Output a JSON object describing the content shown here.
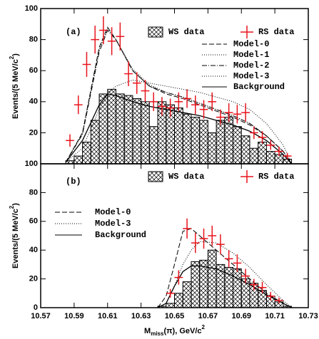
{
  "chart_data": [
    {
      "type": "histogram",
      "panel_label": "(a)",
      "ylabel": {
        "main": "Events/(5 MeV/c",
        "sup": "2",
        "end": ")"
      },
      "xlim": [
        10.57,
        10.73
      ],
      "ylim": [
        0,
        100
      ],
      "yticks": [
        20,
        40,
        60,
        80,
        100
      ],
      "xticks": [
        10.57,
        10.59,
        10.61,
        10.63,
        10.65,
        10.67,
        10.69,
        10.71,
        10.73
      ],
      "ws": {
        "name": "WS data",
        "bins": [
          10.585,
          10.59,
          10.595,
          10.6,
          10.605,
          10.61,
          10.615,
          10.62,
          10.625,
          10.63,
          10.635,
          10.64,
          10.645,
          10.65,
          10.655,
          10.66,
          10.665,
          10.67,
          10.675,
          10.68,
          10.685,
          10.69,
          10.695,
          10.7,
          10.705,
          10.71,
          10.715,
          10.72
        ],
        "counts": [
          2,
          5,
          14,
          28,
          45,
          48,
          45,
          44,
          42,
          40,
          24,
          40,
          38,
          36,
          32,
          30,
          28,
          20,
          28,
          30,
          24,
          18,
          10,
          14,
          8,
          6,
          3
        ]
      },
      "rs": {
        "name": "RS data",
        "color": "#e8141c",
        "x": [
          10.5875,
          10.5925,
          10.5975,
          10.6025,
          10.6075,
          10.6125,
          10.6175,
          10.6225,
          10.6275,
          10.6325,
          10.6375,
          10.6425,
          10.6475,
          10.6525,
          10.6575,
          10.6625,
          10.6675,
          10.6725,
          10.6775,
          10.6825,
          10.6875,
          10.6925,
          10.6975,
          10.7025,
          10.7075,
          10.7125,
          10.7175
        ],
        "values": [
          15,
          38,
          64,
          80,
          86,
          79,
          82,
          58,
          52,
          47,
          40,
          37,
          36,
          40,
          42,
          38,
          35,
          40,
          30,
          33,
          32,
          33,
          20,
          17,
          12,
          8,
          5
        ],
        "errors": [
          4,
          6,
          8,
          9,
          9,
          9,
          9,
          8,
          7,
          7,
          6,
          6,
          6,
          6,
          6,
          6,
          6,
          6,
          5,
          6,
          6,
          6,
          4,
          4,
          3,
          3,
          2
        ]
      },
      "curve_x": [
        10.585,
        10.595,
        10.605,
        10.61,
        10.615,
        10.625,
        10.635,
        10.645,
        10.655,
        10.665,
        10.675,
        10.685,
        10.695,
        10.705,
        10.715,
        10.72
      ],
      "series": [
        {
          "name": "Model-0",
          "style": "dashed",
          "values": [
            1,
            20,
            75,
            88,
            80,
            60,
            50,
            45,
            42,
            38,
            34,
            30,
            25,
            18,
            8,
            0
          ]
        },
        {
          "name": "Model-1",
          "style": "dotted",
          "values": [
            1,
            20,
            74,
            87,
            80,
            61,
            51,
            46,
            43,
            39,
            35,
            31,
            26,
            18,
            8,
            0
          ]
        },
        {
          "name": "Model-2",
          "style": "dashdot",
          "values": [
            1,
            19,
            72,
            86,
            80,
            60,
            50,
            46,
            43,
            39,
            35,
            31,
            26,
            18,
            8,
            0
          ]
        },
        {
          "name": "Model-3",
          "style": "dotted",
          "values": [
            1,
            10,
            35,
            45,
            50,
            54,
            52,
            50,
            48,
            46,
            43,
            40,
            35,
            26,
            12,
            0
          ]
        },
        {
          "name": "Background",
          "style": "solid",
          "values": [
            1,
            15,
            38,
            45,
            44,
            40,
            37,
            35,
            33,
            31,
            28,
            25,
            21,
            15,
            6,
            0
          ]
        }
      ]
    },
    {
      "type": "histogram",
      "panel_label": "(b)",
      "ylabel": {
        "main": "Events/(5 MeV/c",
        "sup": "2",
        "end": ")"
      },
      "xlabel": {
        "main": "M",
        "sub": "miss",
        "rest": "(π), GeV/c",
        "sup": "2"
      },
      "xlim": [
        10.57,
        10.73
      ],
      "ylim": [
        0,
        100
      ],
      "yticks": [
        0,
        20,
        40,
        60,
        80,
        100
      ],
      "xticks": [
        10.57,
        10.59,
        10.61,
        10.63,
        10.65,
        10.67,
        10.69,
        10.71,
        10.73
      ],
      "ws": {
        "name": "WS data",
        "bins": [
          10.64,
          10.645,
          10.65,
          10.655,
          10.66,
          10.665,
          10.67,
          10.675,
          10.68,
          10.685,
          10.69,
          10.695,
          10.7,
          10.705,
          10.71,
          10.715,
          10.72
        ],
        "counts": [
          1,
          3,
          10,
          18,
          32,
          33,
          40,
          30,
          28,
          27,
          20,
          17,
          12,
          8,
          4,
          1
        ]
      },
      "rs": {
        "name": "RS data",
        "color": "#e8141c",
        "x": [
          10.6475,
          10.6525,
          10.6575,
          10.6625,
          10.6675,
          10.6725,
          10.6775,
          10.6825,
          10.6875,
          10.6925,
          10.6975,
          10.7025,
          10.7075,
          10.7125
        ],
        "values": [
          10,
          21,
          55,
          45,
          48,
          50,
          44,
          34,
          31,
          22,
          16,
          14,
          8,
          5
        ],
        "errors": [
          3,
          5,
          7,
          7,
          7,
          7,
          7,
          6,
          6,
          5,
          4,
          4,
          3,
          2
        ]
      },
      "curve_x": [
        10.64,
        10.645,
        10.65,
        10.655,
        10.66,
        10.665,
        10.675,
        10.685,
        10.695,
        10.705,
        10.715,
        10.72
      ],
      "series": [
        {
          "name": "Model-0",
          "style": "dashed",
          "values": [
            0,
            8,
            30,
            53,
            55,
            50,
            40,
            30,
            20,
            10,
            3,
            0
          ]
        },
        {
          "name": "Model-3",
          "style": "dotted",
          "values": [
            0,
            3,
            15,
            30,
            40,
            46,
            45,
            38,
            28,
            16,
            5,
            0
          ]
        },
        {
          "name": "Background",
          "style": "solid",
          "values": [
            0,
            3,
            15,
            25,
            29,
            29,
            27,
            22,
            16,
            9,
            3,
            0
          ]
        }
      ]
    }
  ]
}
